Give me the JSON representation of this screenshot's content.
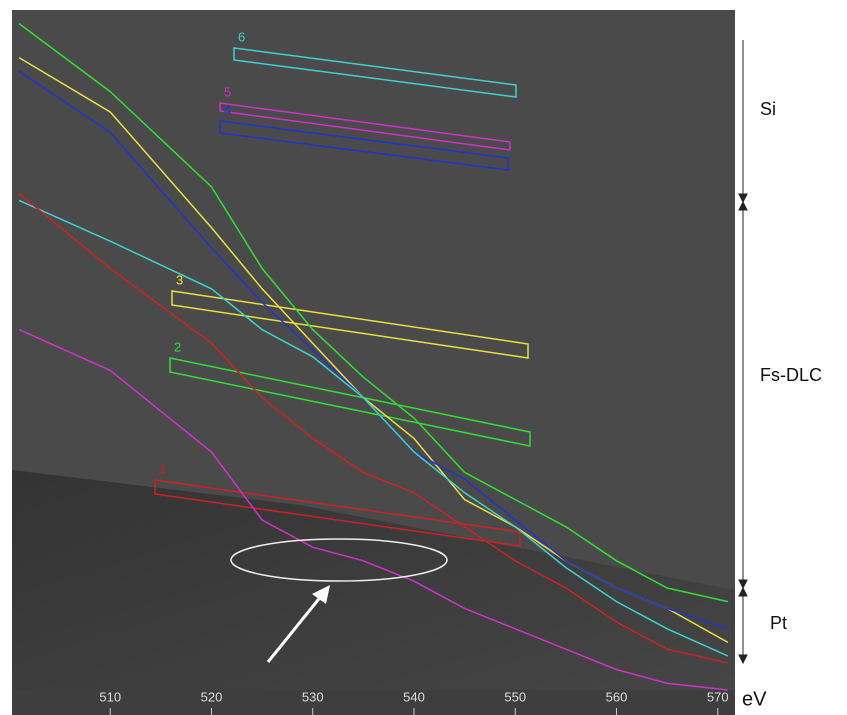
{
  "chart_data": {
    "type": "line",
    "xlabel": "eV",
    "x": [
      501,
      510,
      520,
      525,
      530,
      535,
      540,
      545,
      550,
      555,
      560,
      565,
      571
    ],
    "xlim": [
      500.3,
      571.7
    ],
    "xticks": [
      510,
      520,
      530,
      540,
      550,
      560,
      570
    ],
    "ylim": [
      0,
      100
    ],
    "series": [
      {
        "color": "#33dd33",
        "values": [
          98,
          88,
          74,
          62,
          53,
          46,
          40,
          32,
          28,
          24,
          19,
          15,
          13
        ]
      },
      {
        "color": "#e8e040",
        "values": [
          93,
          85,
          68,
          59,
          51,
          43,
          37,
          28,
          24,
          19,
          15,
          12,
          7
        ]
      },
      {
        "color": "#2233cc",
        "values": [
          91,
          82,
          65,
          57,
          50,
          43,
          35,
          31,
          25,
          19,
          15,
          12,
          9
        ]
      },
      {
        "color": "#40d0d0",
        "values": [
          72,
          66,
          59,
          53,
          49,
          43,
          35,
          29,
          24,
          18,
          13,
          9,
          5
        ]
      },
      {
        "color": "#cc2222",
        "values": [
          73,
          62,
          51,
          43,
          37,
          32,
          29,
          24,
          19,
          15,
          10,
          6,
          4
        ]
      },
      {
        "color": "#cc33cc",
        "values": [
          53,
          47,
          35,
          25,
          21,
          19,
          16,
          12,
          9,
          6,
          3,
          1,
          0
        ]
      }
    ],
    "boxes": [
      {
        "label": "6",
        "color": "#40d0d0"
      },
      {
        "label": "5",
        "color": "#cc33cc"
      },
      {
        "label": "4",
        "color": "#2233cc"
      },
      {
        "label": "3",
        "color": "#e8e040"
      },
      {
        "label": "2",
        "color": "#33dd33"
      },
      {
        "label": "1",
        "color": "#cc2222"
      }
    ],
    "regions": [
      "Si",
      "Fs-DLC",
      "Pt"
    ]
  }
}
